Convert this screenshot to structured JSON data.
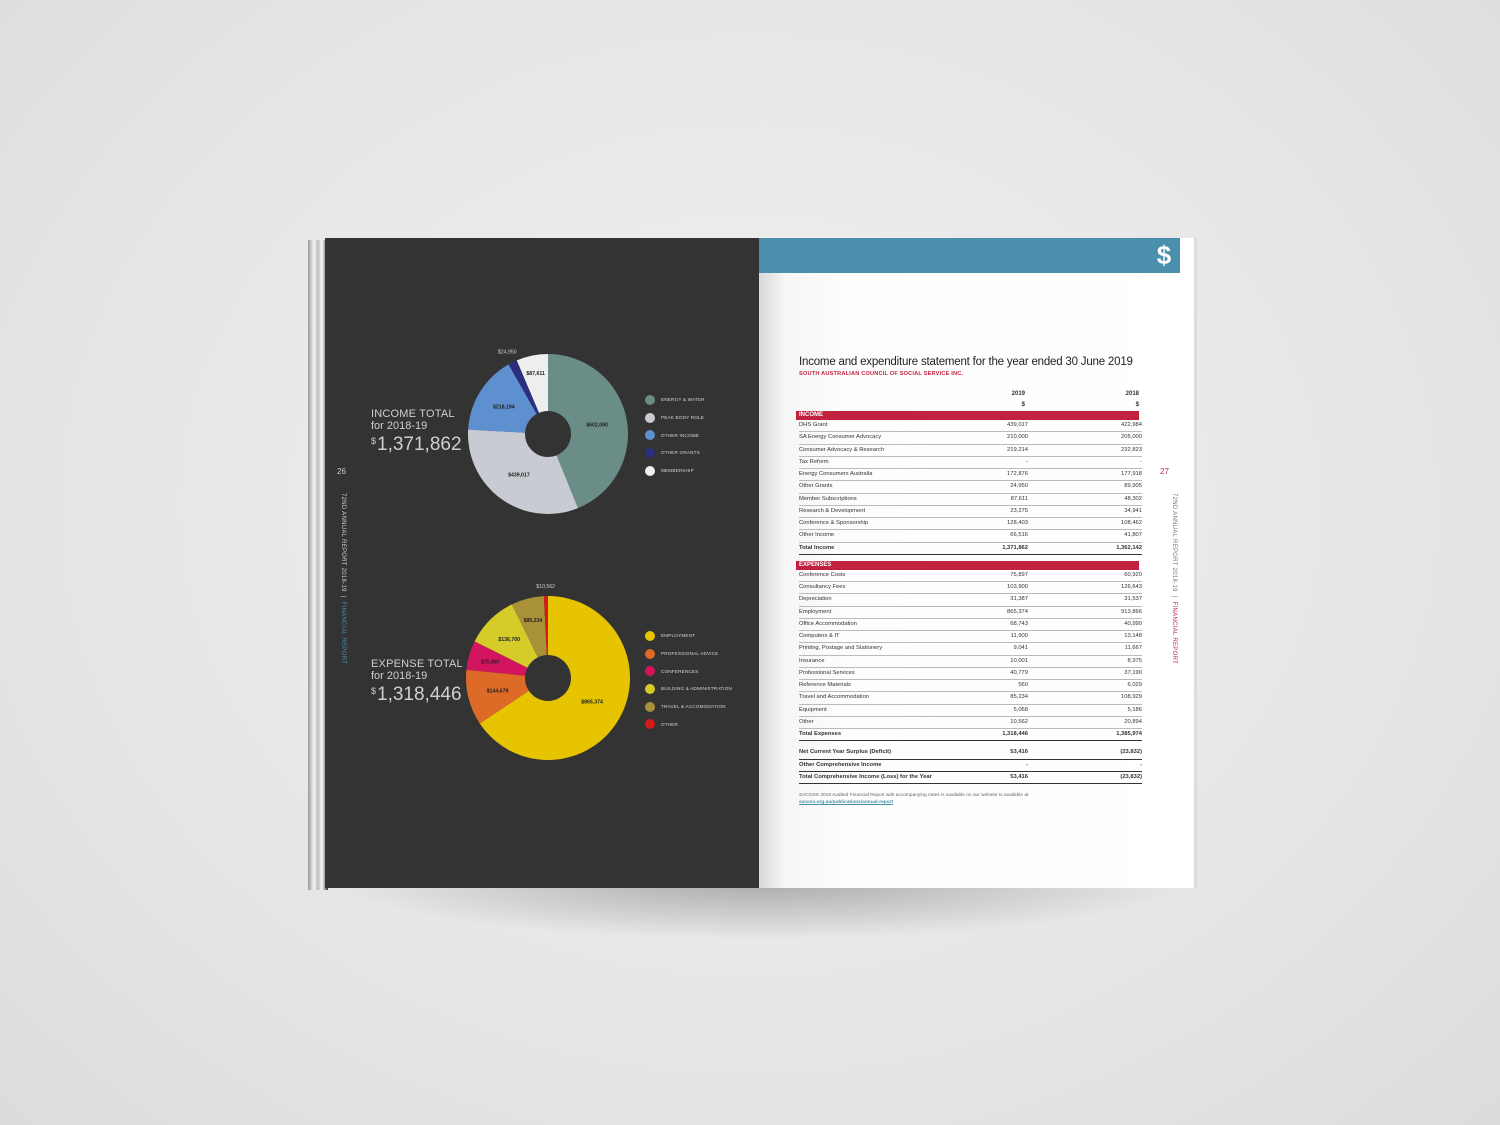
{
  "left_page": {
    "page_number": "26",
    "side_label": {
      "report": "72ND ANNUAL REPORT 2018-19",
      "divider": "|",
      "section": "FINANCIAL REPORT"
    },
    "income": {
      "heading": "INCOME TOTAL",
      "period": "for 2018-19",
      "currency": "$",
      "amount": "1,371,862"
    },
    "expense": {
      "heading": "EXPENSE TOTAL",
      "period": "for 2018-19",
      "currency": "$",
      "amount": "1,318,446"
    }
  },
  "right_page": {
    "page_number": "27",
    "icon": "dollar-icon",
    "icon_glyph": "$",
    "side_label": {
      "report": "72ND ANNUAL REPORT 2018-19",
      "divider": "|",
      "section": "FINANCIAL REPORT"
    },
    "statement": {
      "title": "Income and expenditure statement for the year ended 30 June 2019",
      "organisation": "SOUTH AUSTRALIAN COUNCIL OF SOCIAL SERVICE INC.",
      "col_2019": "2019",
      "col_2018": "2018",
      "unit": "$",
      "income_heading": "INCOME",
      "income_rows": [
        [
          "DHS Grant",
          "439,017",
          "422,984"
        ],
        [
          "SA Energy Consumer Advocacy",
          "210,000",
          "205,000"
        ],
        [
          "Consumer Advocacy & Research",
          "219,214",
          "232,823"
        ],
        [
          "Tax Reform",
          "-",
          "-"
        ],
        [
          "Energy Consumers Australia",
          "172,876",
          "177,918"
        ],
        [
          "Other Grants",
          "24,950",
          "89,905"
        ],
        [
          "Member Subscriptions",
          "87,611",
          "48,302"
        ],
        [
          "Research & Development",
          "23,275",
          "34,941"
        ],
        [
          "Conference & Sponsorship",
          "128,403",
          "108,462"
        ],
        [
          "Other Income",
          "66,516",
          "41,807"
        ]
      ],
      "income_total": [
        "Total Income",
        "1,371,862",
        "1,362,142"
      ],
      "expenses_heading": "EXPENSES",
      "expense_rows": [
        [
          "Conference Costs",
          "75,897",
          "60,920"
        ],
        [
          "Consultancy Fees",
          "103,900",
          "126,643"
        ],
        [
          "Depreciation",
          "31,387",
          "31,537"
        ],
        [
          "Employment",
          "865,374",
          "913,866"
        ],
        [
          "Office Accommodation",
          "68,743",
          "40,990"
        ],
        [
          "Computers & IT",
          "11,900",
          "13,148"
        ],
        [
          "Printing, Postage and Stationery",
          "9,041",
          "11,667"
        ],
        [
          "Insurance",
          "10,001",
          "8,975"
        ],
        [
          "Professional Services",
          "40,779",
          "37,190"
        ],
        [
          "Reference Materials",
          "560",
          "6,029"
        ],
        [
          "Travel and Accommodation",
          "85,234",
          "108,929"
        ],
        [
          "Equipment",
          "5,068",
          "5,186"
        ],
        [
          "Other",
          "10,562",
          "20,894"
        ]
      ],
      "expense_total": [
        "Total Expenses",
        "1,318,446",
        "1,385,974"
      ],
      "summary_rows": [
        [
          "Net Current Year Surplus (Deficit)",
          "53,416",
          "(23,832)"
        ],
        [
          "Other Comprehensive Income",
          "-",
          "-"
        ],
        [
          "Total Comprehensive Income (Loss) for the Year",
          "53,416",
          "(23,832)"
        ]
      ],
      "note": "SACOSS 2019 Audited Financial Report with accompanying notes is available on our website to available at",
      "note_link": "sacoss.org.au/publications/annual-report"
    }
  },
  "chart_data": [
    {
      "type": "pie",
      "subtype": "donut",
      "title": "INCOME TOTAL",
      "slices": [
        {
          "label": "ENERGY & WATER",
          "value": 602090,
          "value_label": "$602,090",
          "color": "#6b8d88"
        },
        {
          "label": "PEAK BODY ROLE",
          "value": 439017,
          "value_label": "$439,017",
          "color": "#c8ccd2"
        },
        {
          "label": "OTHER INCOME",
          "value": 218194,
          "value_label": "$218,194",
          "color": "#5e8fcf"
        },
        {
          "label": "OTHER GRANTS",
          "value": 24950,
          "value_label": "$24,950",
          "color": "#2c2f7e"
        },
        {
          "label": "MEMBERSHIP",
          "value": 87611,
          "value_label": "$87,611",
          "color": "#eeeeee"
        }
      ]
    },
    {
      "type": "pie",
      "subtype": "donut",
      "title": "EXPENSE TOTAL",
      "slices": [
        {
          "label": "EMPLOYMENT",
          "value": 865374,
          "value_label": "$865,374",
          "color": "#e6c400"
        },
        {
          "label": "PROFESSIONAL ADVICE",
          "value": 144679,
          "value_label": "$144,679",
          "color": "#dd6b27"
        },
        {
          "label": "CONFERENCES",
          "value": 75897,
          "value_label": "$75,897",
          "color": "#d2155e"
        },
        {
          "label": "BUILDING & ADMINISTRATION",
          "value": 136700,
          "value_label": "$136,700",
          "color": "#d5cc2a"
        },
        {
          "label": "TRAVEL & ACCOMODATION",
          "value": 85234,
          "value_label": "$85,234",
          "color": "#a89137"
        },
        {
          "label": "OTHER",
          "value": 10562,
          "value_label": "$10,562",
          "color": "#d51a1a"
        }
      ]
    }
  ]
}
